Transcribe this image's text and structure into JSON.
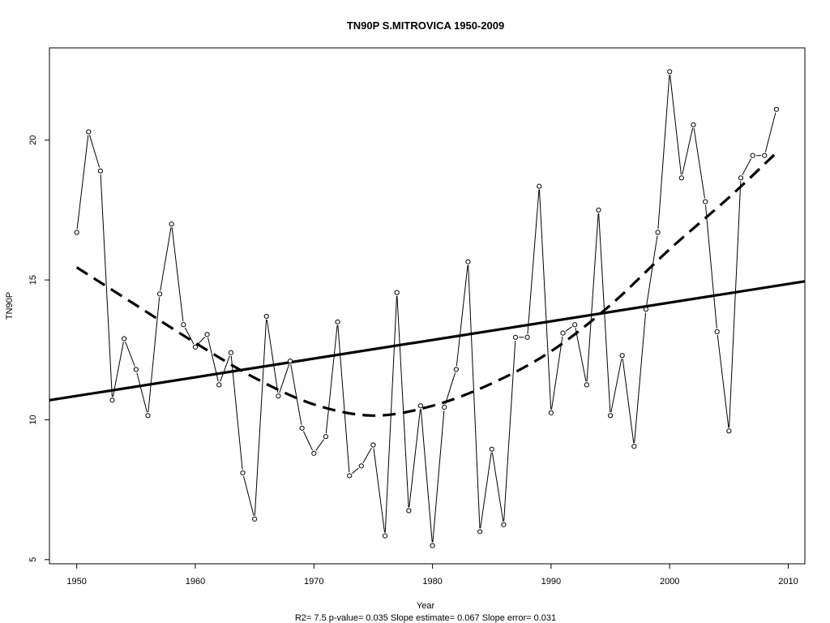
{
  "chart_data": {
    "type": "line",
    "title": "TN90P   S.MITROVICA 1950-2009",
    "xlabel": "Year",
    "ylabel": "TN90P",
    "subtitle": "R2= 7.5  p-value= 0.035  Slope estimate= 0.067  Slope error= 0.031",
    "xlim": [
      1947.7,
      2011.4
    ],
    "ylim": [
      4.85,
      23.3
    ],
    "x_ticks": [
      1950,
      1960,
      1970,
      1980,
      1990,
      2000,
      2010
    ],
    "y_ticks": [
      5,
      10,
      15,
      20
    ],
    "grid": false,
    "legend": "none",
    "x": [
      1950,
      1951,
      1952,
      1953,
      1954,
      1955,
      1956,
      1957,
      1958,
      1959,
      1960,
      1961,
      1962,
      1963,
      1964,
      1965,
      1966,
      1967,
      1968,
      1969,
      1970,
      1971,
      1972,
      1973,
      1974,
      1975,
      1976,
      1977,
      1978,
      1979,
      1980,
      1981,
      1982,
      1983,
      1984,
      1985,
      1986,
      1987,
      1988,
      1989,
      1990,
      1991,
      1992,
      1993,
      1994,
      1995,
      1996,
      1997,
      1998,
      1999,
      2000,
      2001,
      2002,
      2003,
      2004,
      2005,
      2006,
      2007,
      2008,
      2009
    ],
    "series": [
      {
        "values": [
          16.7,
          20.3,
          18.9,
          10.7,
          12.9,
          11.8,
          10.15,
          14.5,
          17.0,
          13.4,
          12.6,
          13.05,
          11.25,
          12.4,
          8.1,
          6.45,
          13.7,
          10.85,
          12.1,
          9.7,
          8.8,
          9.4,
          13.5,
          8.0,
          8.35,
          9.1,
          5.85,
          14.55,
          6.75,
          10.5,
          5.5,
          10.45,
          11.8,
          15.65,
          6.0,
          8.95,
          6.25,
          12.95,
          12.95,
          18.35,
          10.25,
          13.1,
          13.4,
          11.25,
          17.5,
          10.15,
          12.3,
          9.05,
          13.95,
          16.7,
          22.45,
          18.65,
          20.55,
          17.8,
          13.15,
          9.6,
          18.65,
          19.45,
          19.45,
          21.1
        ]
      }
    ],
    "trend_linear": {
      "x": [
        1947.7,
        2011.4
      ],
      "y": [
        10.7,
        14.95
      ]
    },
    "trend_smooth": {
      "x": [
        1950,
        1955,
        1960,
        1965,
        1970,
        1975,
        1980,
        1985,
        1990,
        1995,
        2000,
        2005,
        2009
      ],
      "y": [
        15.45,
        14.1,
        12.75,
        11.5,
        10.55,
        10.15,
        10.5,
        11.3,
        12.45,
        14.1,
        16.1,
        17.95,
        19.55
      ]
    },
    "colors": {
      "line": "#000000",
      "background": "#ffffff"
    }
  }
}
